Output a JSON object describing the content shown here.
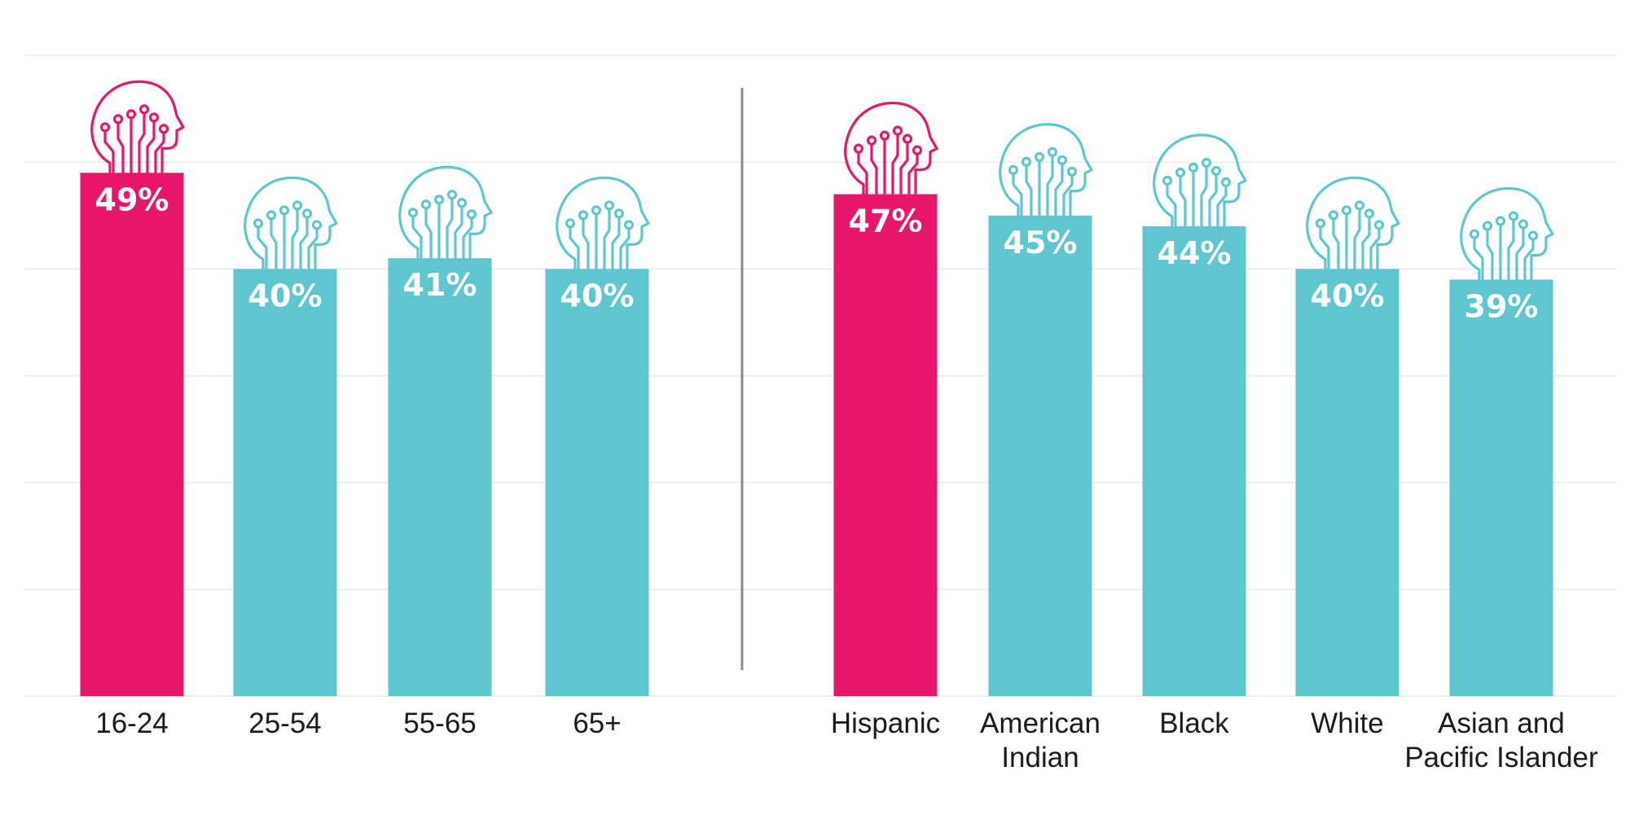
{
  "chart_data": {
    "type": "bar",
    "ylim": [
      0,
      60
    ],
    "grid": true,
    "groups": [
      {
        "categories": [
          [
            "16-24"
          ],
          [
            "25-54"
          ],
          [
            "55-65"
          ],
          [
            "65+"
          ]
        ],
        "values": [
          49,
          40,
          41,
          40
        ],
        "value_labels": [
          "49%",
          "40%",
          "41%",
          "40%"
        ],
        "highlight": [
          true,
          false,
          false,
          false
        ]
      },
      {
        "categories": [
          [
            "Hispanic"
          ],
          [
            "American",
            "Indian"
          ],
          [
            "Black"
          ],
          [
            "White"
          ],
          [
            "Asian and",
            "Pacific Islander"
          ]
        ],
        "values": [
          47,
          45,
          44,
          40,
          39
        ],
        "value_labels": [
          "47%",
          "45%",
          "44%",
          "40%",
          "39%"
        ],
        "highlight": [
          true,
          false,
          false,
          false,
          false
        ]
      }
    ],
    "colors": {
      "highlight": "#e8166a",
      "default": "#5ec6cf",
      "grid": "#eeeeee",
      "divider": "#888888"
    },
    "icon": "brain-circuit-head-icon"
  }
}
